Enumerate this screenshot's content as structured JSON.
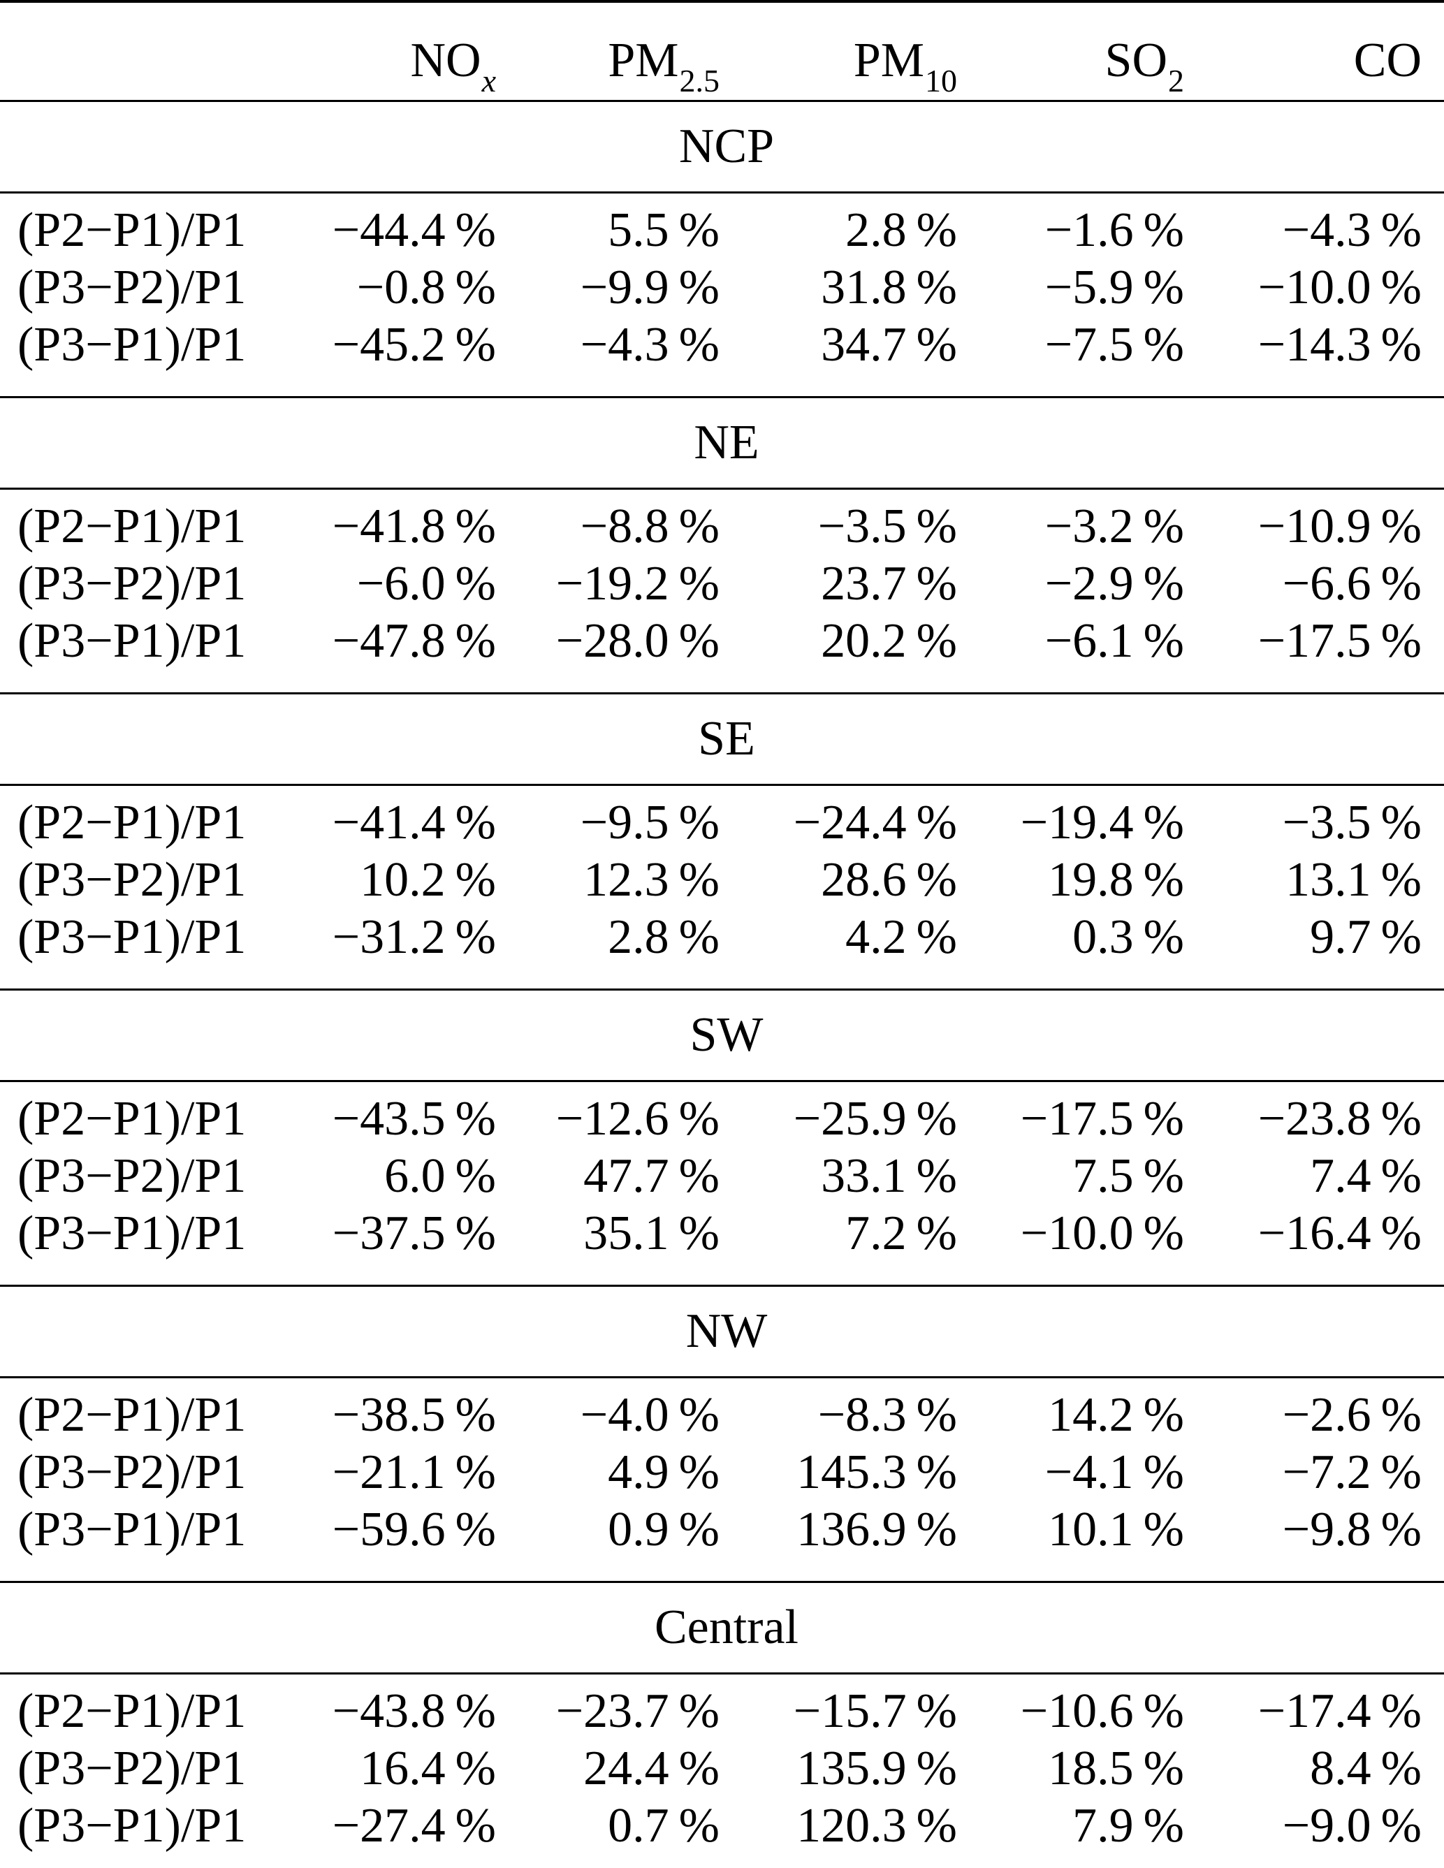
{
  "page": {
    "background_color": "#ffffff",
    "text_color": "#000000"
  },
  "table": {
    "columns": [
      {
        "base": "",
        "sub": "",
        "key": "row-label"
      },
      {
        "base": "NO",
        "sub": "x",
        "sub_italic": true,
        "key": "nox"
      },
      {
        "base": "PM",
        "sub": "2.5",
        "sub_italic": false,
        "key": "pm25"
      },
      {
        "base": "PM",
        "sub": "10",
        "sub_italic": false,
        "key": "pm10"
      },
      {
        "base": "SO",
        "sub": "2",
        "sub_italic": false,
        "key": "so2"
      },
      {
        "base": "CO",
        "sub": "",
        "sub_italic": false,
        "key": "co"
      }
    ],
    "sections": [
      {
        "name": "NCP",
        "rows": [
          {
            "label": "(P2−P1)/P1",
            "values": [
              "−44.4 %",
              "5.5 %",
              "2.8 %",
              "−1.6 %",
              "−4.3 %"
            ]
          },
          {
            "label": "(P3−P2)/P1",
            "values": [
              "−0.8 %",
              "−9.9 %",
              "31.8 %",
              "−5.9 %",
              "−10.0 %"
            ]
          },
          {
            "label": "(P3−P1)/P1",
            "values": [
              "−45.2 %",
              "−4.3 %",
              "34.7 %",
              "−7.5 %",
              "−14.3 %"
            ]
          }
        ]
      },
      {
        "name": "NE",
        "rows": [
          {
            "label": "(P2−P1)/P1",
            "values": [
              "−41.8 %",
              "−8.8 %",
              "−3.5 %",
              "−3.2 %",
              "−10.9 %"
            ]
          },
          {
            "label": "(P3−P2)/P1",
            "values": [
              "−6.0 %",
              "−19.2 %",
              "23.7 %",
              "−2.9 %",
              "−6.6 %"
            ]
          },
          {
            "label": "(P3−P1)/P1",
            "values": [
              "−47.8 %",
              "−28.0 %",
              "20.2 %",
              "−6.1 %",
              "−17.5 %"
            ]
          }
        ]
      },
      {
        "name": "SE",
        "rows": [
          {
            "label": "(P2−P1)/P1",
            "values": [
              "−41.4 %",
              "−9.5 %",
              "−24.4 %",
              "−19.4 %",
              "−3.5 %"
            ]
          },
          {
            "label": "(P3−P2)/P1",
            "values": [
              "10.2 %",
              "12.3 %",
              "28.6 %",
              "19.8 %",
              "13.1 %"
            ]
          },
          {
            "label": "(P3−P1)/P1",
            "values": [
              "−31.2 %",
              "2.8 %",
              "4.2 %",
              "0.3 %",
              "9.7 %"
            ]
          }
        ]
      },
      {
        "name": "SW",
        "rows": [
          {
            "label": "(P2−P1)/P1",
            "values": [
              "−43.5 %",
              "−12.6 %",
              "−25.9 %",
              "−17.5 %",
              "−23.8 %"
            ]
          },
          {
            "label": "(P3−P2)/P1",
            "values": [
              "6.0 %",
              "47.7 %",
              "33.1 %",
              "7.5 %",
              "7.4 %"
            ]
          },
          {
            "label": "(P3−P1)/P1",
            "values": [
              "−37.5 %",
              "35.1 %",
              "7.2 %",
              "−10.0 %",
              "−16.4 %"
            ]
          }
        ]
      },
      {
        "name": "NW",
        "rows": [
          {
            "label": "(P2−P1)/P1",
            "values": [
              "−38.5 %",
              "−4.0 %",
              "−8.3 %",
              "14.2 %",
              "−2.6 %"
            ]
          },
          {
            "label": "(P3−P2)/P1",
            "values": [
              "−21.1 %",
              "4.9 %",
              "145.3 %",
              "−4.1 %",
              "−7.2 %"
            ]
          },
          {
            "label": "(P3−P1)/P1",
            "values": [
              "−59.6 %",
              "0.9 %",
              "136.9 %",
              "10.1 %",
              "−9.8 %"
            ]
          }
        ]
      },
      {
        "name": "Central",
        "rows": [
          {
            "label": "(P2−P1)/P1",
            "values": [
              "−43.8 %",
              "−23.7 %",
              "−15.7 %",
              "−10.6 %",
              "−17.4 %"
            ]
          },
          {
            "label": "(P3−P2)/P1",
            "values": [
              "16.4 %",
              "24.4 %",
              "135.9 %",
              "18.5 %",
              "8.4 %"
            ]
          },
          {
            "label": "(P3−P1)/P1",
            "values": [
              "−27.4 %",
              "0.7 %",
              "120.3 %",
              "7.9 %",
              "−9.0 %"
            ]
          }
        ]
      }
    ]
  }
}
